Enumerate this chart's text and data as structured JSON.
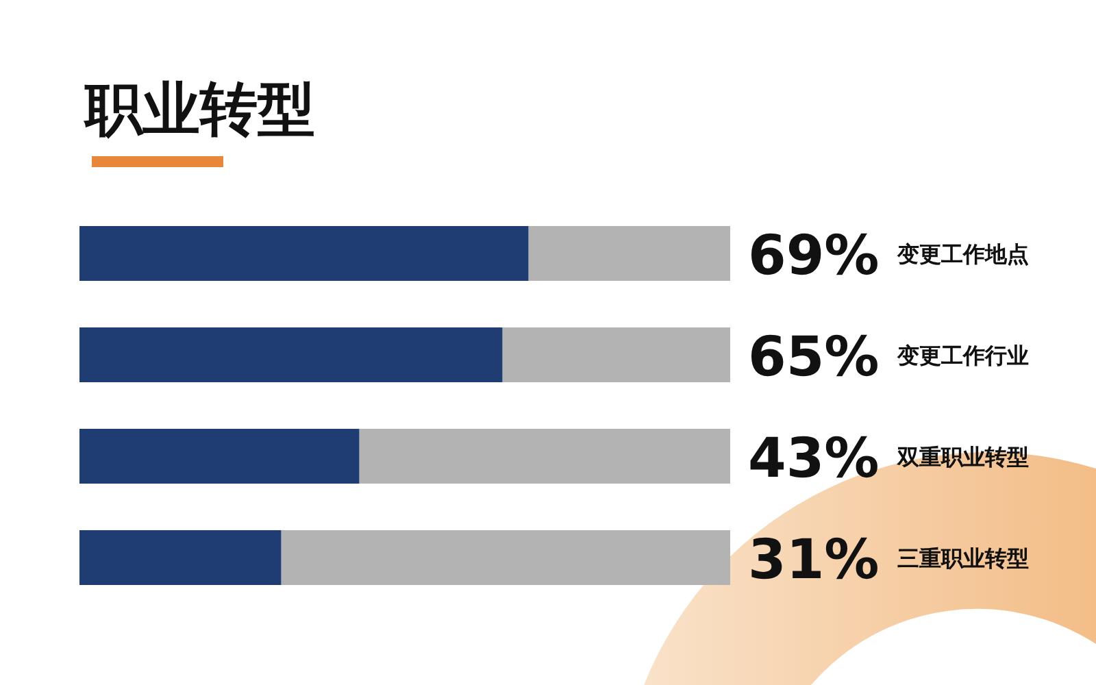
{
  "chart_data": {
    "type": "bar",
    "orientation": "horizontal",
    "title": "职业转型",
    "categories": [
      "变更工作地点",
      "变更工作行业",
      "双重职业转型",
      "三重职业转型"
    ],
    "values": [
      69,
      65,
      43,
      31
    ],
    "value_labels": [
      "69%",
      "65%",
      "43%",
      "31%"
    ],
    "color": "#1f3d73",
    "xlim": [
      0,
      100
    ],
    "tick_labels": "y"
  }
}
